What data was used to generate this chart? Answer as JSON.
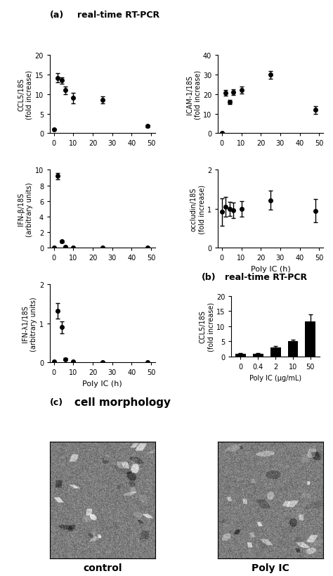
{
  "panel_a_label": "(a)",
  "panel_a_title": "real-time RT-PCR",
  "panel_b_label": "(b)",
  "panel_b_title": "real-time RT-PCR",
  "panel_c_label": "(c)",
  "panel_c_title": "cell morphology",
  "time_points": [
    0,
    2,
    4,
    6,
    10,
    25,
    48
  ],
  "ccl5_y": [
    1.0,
    14.2,
    13.5,
    11.0,
    9.0,
    8.5,
    1.8
  ],
  "ccl5_yerr": [
    0.1,
    1.2,
    0.8,
    1.0,
    1.3,
    0.9,
    0.2
  ],
  "ccl5_ylim": [
    0,
    20
  ],
  "ccl5_yticks": [
    0,
    5,
    10,
    15,
    20
  ],
  "ccl5_ylabel": "CCL5/18S\n(fold increase)",
  "icam_y": [
    0.2,
    20.8,
    16.0,
    21.0,
    22.0,
    30.0,
    12.0
  ],
  "icam_yerr": [
    0.3,
    1.5,
    1.0,
    1.5,
    1.8,
    2.0,
    2.0
  ],
  "icam_ylim": [
    0,
    40
  ],
  "icam_yticks": [
    0,
    10,
    20,
    30,
    40
  ],
  "icam_ylabel": "ICAM-1/18S\n(fold increase)",
  "ifnb_y": [
    0.05,
    9.2,
    0.8,
    0.15,
    0.05,
    0.02,
    0.01
  ],
  "ifnb_yerr": [
    0.02,
    0.4,
    0.15,
    0.05,
    0.02,
    0.01,
    0.005
  ],
  "ifnb_ylim": [
    0,
    10
  ],
  "ifnb_yticks": [
    0,
    2,
    4,
    6,
    8,
    10
  ],
  "ifnb_ylabel": "IFN-β/18S\n(arbitrary units)",
  "occludin_x": [
    0,
    2,
    4,
    6,
    10,
    25,
    48
  ],
  "occludin_y": [
    0.92,
    1.05,
    1.0,
    0.96,
    1.0,
    1.22,
    0.95
  ],
  "occludin_yerr": [
    0.35,
    0.25,
    0.18,
    0.2,
    0.2,
    0.25,
    0.3
  ],
  "occludin_ylim": [
    0,
    2
  ],
  "occludin_yticks": [
    0,
    1,
    2
  ],
  "occludin_ylabel": "occludin/18S\n(fold increase)",
  "ifnl_y": [
    0.02,
    1.32,
    0.9,
    0.08,
    0.02,
    0.01,
    0.005
  ],
  "ifnl_yerr": [
    0.01,
    0.2,
    0.15,
    0.03,
    0.01,
    0.005,
    0.002
  ],
  "ifnl_ylim": [
    0,
    2
  ],
  "ifnl_yticks": [
    0,
    1,
    2
  ],
  "ifnl_ylabel": "IFN-λ1/18S\n(arbitrary units)",
  "xticks_time": [
    0,
    10,
    20,
    30,
    40,
    50
  ],
  "xlabel_time": "Poly IC (h)",
  "bar_xlabels": [
    "0",
    "0.4",
    "2",
    "10",
    "50"
  ],
  "bar_y": [
    1.0,
    1.0,
    3.1,
    5.0,
    11.5
  ],
  "bar_yerr": [
    0.1,
    0.1,
    0.3,
    0.5,
    2.5
  ],
  "bar_ylim": [
    0,
    20
  ],
  "bar_yticks": [
    0,
    5,
    10,
    15,
    20
  ],
  "bar_ylabel": "CCL5/18S\n(fold increase)",
  "bar_xlabel": "Poly IC (μg/mL)",
  "line_color": "#000000",
  "bar_color": "#000000",
  "marker": "o",
  "markersize": 4,
  "linewidth": 1.5,
  "capsize": 2,
  "elinewidth": 1,
  "cell_label_left": "control",
  "cell_label_right": "Poly IC"
}
